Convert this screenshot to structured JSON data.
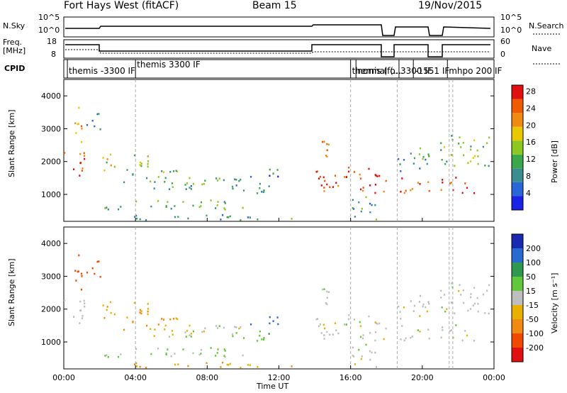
{
  "header": {
    "title": "Fort Hays West (fitACF)",
    "beam": "Beam 15",
    "date": "19/Nov/2015"
  },
  "top_panels": {
    "nsky_label": "N.Sky",
    "nsky_ticks": [
      "10^5",
      "10^0"
    ],
    "nsearch_label": "N.Search",
    "nsearch_ticks": [
      "10^5",
      "10^0"
    ],
    "freq_label": "Freq.",
    "freq_unit": "[MHz]",
    "freq_ticks": [
      "18",
      "8"
    ],
    "nave_label": "Nave",
    "nave_ticks": [
      "60",
      "0"
    ],
    "cpid_label": "CPID",
    "cpid_entries": [
      {
        "t": 0.2,
        "label": "themis -3300 IF"
      },
      {
        "t": 4.0,
        "label": "themis 3300 IF"
      },
      {
        "t": 16.0,
        "label": "themis (fo..."
      },
      {
        "t": 16.3,
        "label": "normal (..."
      },
      {
        "t": 18.7,
        "label": "3300 IF"
      },
      {
        "t": 19.5,
        "label": "-1551 IF"
      },
      {
        "t": 21.4,
        "label": "mhpo 200 IF"
      }
    ]
  },
  "xaxis": {
    "label": "Time UT",
    "ticks": [
      "00:00",
      "04:00",
      "08:00",
      "12:00",
      "16:00",
      "20:00",
      "00:00"
    ]
  },
  "power_panel": {
    "ylabel": "Slant Range [km]",
    "yticks": [
      "1000",
      "2000",
      "3000",
      "4000"
    ],
    "colorbar_label": "Power [dB]",
    "colorbar_ticks": [
      "4",
      "8",
      "12",
      "16",
      "20",
      "24",
      "28"
    ]
  },
  "velocity_panel": {
    "ylabel": "Slant Range [km]",
    "yticks": [
      "1000",
      "2000",
      "3000",
      "4000"
    ],
    "colorbar_label": "Velocity [m s⁻¹]",
    "colorbar_ticks": [
      "200",
      "100",
      "50",
      "15",
      "-15",
      "-50",
      "-100",
      "-200"
    ]
  },
  "chart_data": {
    "type": "heatmap",
    "x_range_hours": [
      0,
      24
    ],
    "y_range_km": [
      180,
      4500
    ],
    "power_colors": [
      "#1a22e6",
      "#2a66d8",
      "#3c8c90",
      "#3aa84a",
      "#8cc820",
      "#e8c800",
      "#f08a10",
      "#f05a00",
      "#e01010"
    ],
    "velocity_colors": [
      "#e01010",
      "#f04a00",
      "#f08a10",
      "#e8b000",
      "#bebebe",
      "#60c83a",
      "#2e9850",
      "#2a6ad0",
      "#1a2ab0"
    ],
    "echo_regions": [
      {
        "t0": 0.0,
        "t1": 1.2,
        "r0": 1500,
        "r1": 2300,
        "power": 26,
        "velocity": 0
      },
      {
        "t0": 0.4,
        "t1": 1.0,
        "r0": 2500,
        "r1": 3700,
        "power": 20,
        "velocity": -150
      },
      {
        "t0": 1.2,
        "t1": 2.0,
        "r0": 2800,
        "r1": 3500,
        "power": 10,
        "velocity": -150
      },
      {
        "t0": 2.0,
        "t1": 5.0,
        "r0": 1700,
        "r1": 2200,
        "power": 18,
        "velocity": -50
      },
      {
        "t0": 3.0,
        "t1": 7.0,
        "r0": 1300,
        "r1": 1700,
        "power": 14,
        "velocity": -50
      },
      {
        "t0": 5.0,
        "t1": 10.0,
        "r0": 1100,
        "r1": 1500,
        "power": 12,
        "velocity": 0
      },
      {
        "t0": 9.5,
        "t1": 11.5,
        "r0": 1000,
        "r1": 1400,
        "power": 10,
        "velocity": 40
      },
      {
        "t0": 10.0,
        "t1": 12.0,
        "r0": 1500,
        "r1": 1750,
        "power": 8,
        "velocity": 150
      },
      {
        "t0": 2.0,
        "t1": 10.0,
        "r0": 500,
        "r1": 800,
        "power": 14,
        "velocity": 15
      },
      {
        "t0": 3.0,
        "t1": 13.0,
        "r0": 180,
        "r1": 350,
        "power": 10,
        "velocity": -50
      },
      {
        "t0": 14.0,
        "t1": 18.0,
        "r0": 1000,
        "r1": 1800,
        "power": 26,
        "velocity": 0
      },
      {
        "t0": 14.2,
        "t1": 15.0,
        "r0": 1800,
        "r1": 2600,
        "power": 20,
        "velocity": 0
      },
      {
        "t0": 16.0,
        "t1": 17.5,
        "r0": 200,
        "r1": 1000,
        "power": 12,
        "velocity": 0
      },
      {
        "t0": 18.6,
        "t1": 20.4,
        "r0": 1000,
        "r1": 1500,
        "power": 26,
        "velocity": 0
      },
      {
        "t0": 18.6,
        "t1": 20.4,
        "r0": 1600,
        "r1": 2400,
        "power": 12,
        "velocity": 0
      },
      {
        "t0": 21.0,
        "t1": 23.0,
        "r0": 1000,
        "r1": 1500,
        "power": 26,
        "velocity": 0
      },
      {
        "t0": 21.0,
        "t1": 23.8,
        "r0": 1800,
        "r1": 2800,
        "power": 14,
        "velocity": 0
      }
    ],
    "data_gaps_hours": [
      [
        18.0,
        18.6
      ],
      [
        20.4,
        20.9
      ]
    ],
    "cpid_boundaries_hours": [
      4.0,
      16.0,
      18.6,
      21.5,
      21.7
    ]
  }
}
